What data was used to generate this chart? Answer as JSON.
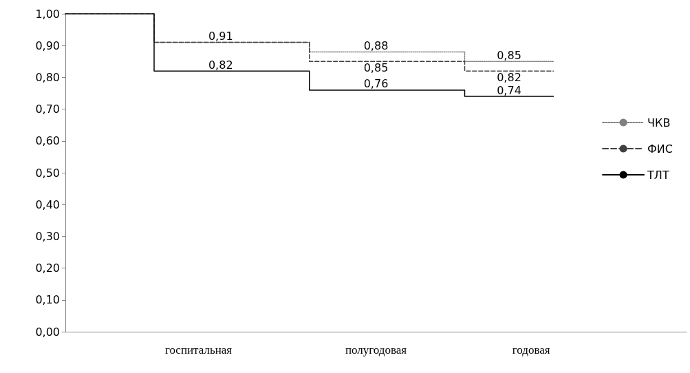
{
  "chart_data": {
    "type": "step",
    "marker": "none",
    "grid": false,
    "legend": "right",
    "categories": [
      null,
      null,
      null,
      null,
      null,
      null,
      "госпитальная",
      null,
      null,
      null,
      null,
      null,
      null,
      null,
      "полугодовая",
      null,
      null,
      null,
      null,
      null,
      null,
      "годовая",
      null,
      null,
      null,
      null,
      null,
      null,
      null
    ],
    "ylim": [
      0,
      1
    ],
    "yticks": [
      {
        "value": 0,
        "label": "0,00"
      },
      {
        "value": 0.1,
        "label": "0,10"
      },
      {
        "value": 0.2,
        "label": "0,20"
      },
      {
        "value": 0.3,
        "label": "0,30"
      },
      {
        "value": 0.4,
        "label": "0,40"
      },
      {
        "value": 0.5,
        "label": "0,50"
      },
      {
        "value": 0.6,
        "label": "0,60"
      },
      {
        "value": 0.7,
        "label": "0,70"
      },
      {
        "value": 0.8,
        "label": "0,80"
      },
      {
        "value": 0.9,
        "label": "0,90"
      },
      {
        "value": 1,
        "label": "1,00"
      }
    ],
    "series": [
      {
        "name": "ЧКВ",
        "color": "#808080",
        "line_style": "dotted",
        "values": [
          1,
          1,
          1,
          1,
          0.91,
          0.91,
          0.91,
          0.91,
          0.91,
          0.91,
          0.91,
          0.88,
          0.88,
          0.88,
          0.88,
          0.88,
          0.88,
          0.88,
          0.85,
          0.85,
          0.85,
          0.85,
          0.85,
          null,
          null,
          null,
          null,
          null,
          null
        ],
        "value_labels": [
          null,
          null,
          null,
          null,
          null,
          null,
          null,
          "0,91",
          null,
          null,
          null,
          null,
          null,
          null,
          "0,88",
          null,
          null,
          null,
          null,
          null,
          "0,85",
          null,
          null,
          null,
          null,
          null,
          null,
          null,
          null
        ]
      },
      {
        "name": "ФИС",
        "color": "#404040",
        "line_style": "dashed",
        "values": [
          1,
          1,
          1,
          1,
          0.91,
          0.91,
          0.91,
          0.91,
          0.91,
          0.91,
          0.91,
          0.85,
          0.85,
          0.85,
          0.85,
          0.85,
          0.85,
          0.85,
          0.82,
          0.82,
          0.82,
          0.82,
          0.82,
          null,
          null,
          null,
          null,
          null,
          null
        ],
        "value_labels": [
          null,
          null,
          null,
          null,
          null,
          null,
          null,
          null,
          null,
          null,
          null,
          null,
          null,
          null,
          "0,85",
          null,
          null,
          null,
          null,
          null,
          "0,82",
          null,
          null,
          null,
          null,
          null,
          null,
          null,
          null
        ]
      },
      {
        "name": "ТЛТ",
        "color": "#000000",
        "line_style": "solid",
        "values": [
          1,
          1,
          1,
          1,
          0.82,
          0.82,
          0.82,
          0.82,
          0.82,
          0.82,
          0.82,
          0.76,
          0.76,
          0.76,
          0.76,
          0.76,
          0.76,
          0.76,
          0.74,
          0.74,
          0.74,
          0.74,
          0.74,
          null,
          null,
          null,
          null,
          null,
          null
        ],
        "value_labels": [
          null,
          null,
          null,
          null,
          null,
          null,
          null,
          "0,82",
          null,
          null,
          null,
          null,
          null,
          null,
          "0,76",
          null,
          null,
          null,
          null,
          null,
          "0,74",
          null,
          null,
          null,
          null,
          null,
          null,
          null,
          null
        ]
      }
    ]
  }
}
